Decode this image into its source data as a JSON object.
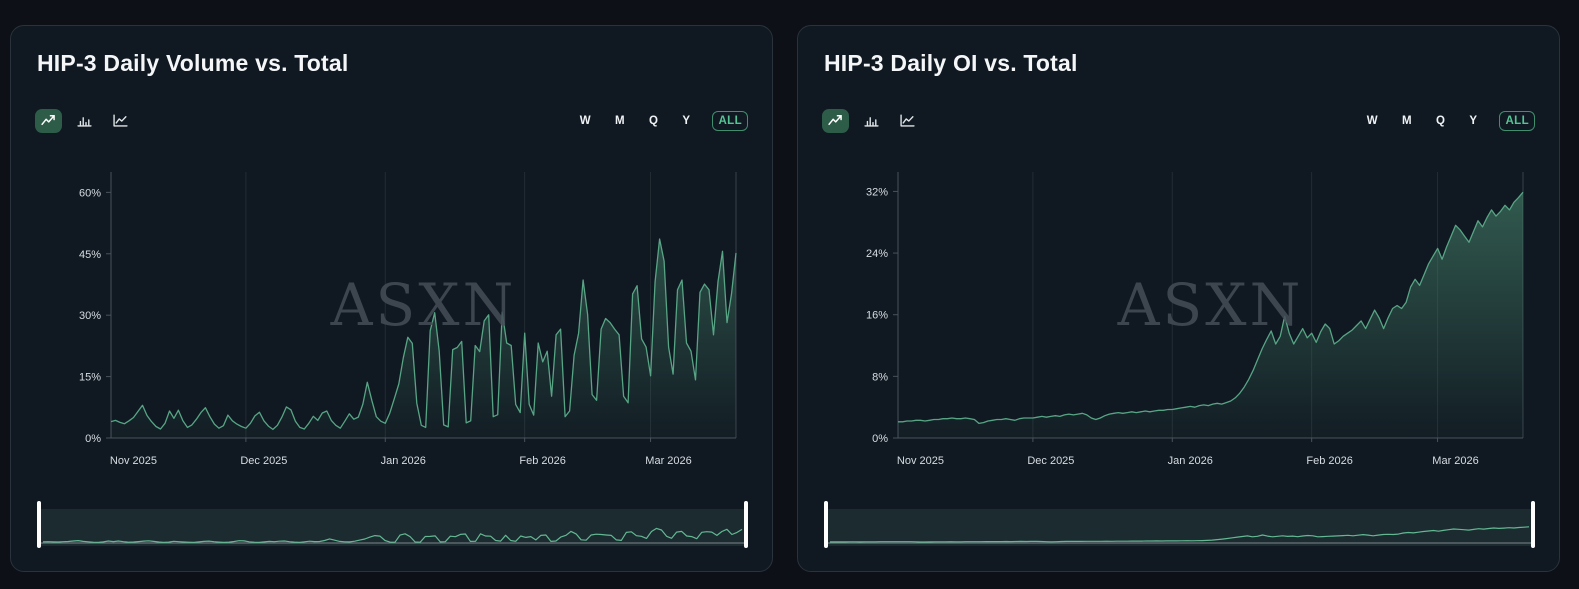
{
  "watermark": "ASXN",
  "toolbar": {
    "chart_types": [
      "trend-line",
      "bar-chart",
      "area-line"
    ],
    "active_chart_type": "trend-line",
    "ranges": [
      "W",
      "M",
      "Q",
      "Y",
      "ALL"
    ],
    "active_range": "ALL"
  },
  "colors": {
    "page_bg": "#0d1117",
    "panel_bg": "#101821",
    "accent_green": "#56c495",
    "series_line": "#57a585",
    "nav_line": "#63b893",
    "selected_icon_bg": "#2d5c49",
    "watermark": "#454d57"
  },
  "chart_data": [
    {
      "type": "area",
      "title": "HIP-3 Daily Volume vs. Total",
      "xlabel": "",
      "ylabel": "",
      "grid": "vertical-month-lines",
      "legend": "none",
      "ylim": [
        0,
        64
      ],
      "y_tick_values": [
        0,
        15,
        30,
        45,
        60
      ],
      "y_tick_labels": [
        "0%",
        "15%",
        "30%",
        "45%",
        "60%"
      ],
      "x_tick_labels": [
        "Nov 2025",
        "Dec 2025",
        "Jan 2026",
        "Feb 2026",
        "Mar 2026"
      ],
      "month_start_indices": [
        30,
        61,
        92,
        120
      ],
      "x_label_day_centers": [
        5,
        34,
        65,
        96,
        124
      ],
      "nav_scale_max": 110,
      "values": [
        4.0,
        4.3,
        3.8,
        3.5,
        4.2,
        5.0,
        6.5,
        8.0,
        5.5,
        4.0,
        2.8,
        2.2,
        3.6,
        6.6,
        4.8,
        6.8,
        4.2,
        2.6,
        3.2,
        4.6,
        6.2,
        7.4,
        5.2,
        3.4,
        2.4,
        3.0,
        5.6,
        4.2,
        3.4,
        2.8,
        2.4,
        3.6,
        5.4,
        6.3,
        4.2,
        2.9,
        2.1,
        3.1,
        5.1,
        7.6,
        6.9,
        4.1,
        2.6,
        2.2,
        3.6,
        5.3,
        4.3,
        6.1,
        6.6,
        4.3,
        3.1,
        2.4,
        4.1,
        5.9,
        4.6,
        5.1,
        8.2,
        13.6,
        9.2,
        5.2,
        4.1,
        3.6,
        6.1,
        9.6,
        13.2,
        19.6,
        24.6,
        23.1,
        8.5,
        3.1,
        2.6,
        26.2,
        30.6,
        21.2,
        3.2,
        2.7,
        21.6,
        22.1,
        23.6,
        3.7,
        4.2,
        22.6,
        21.1,
        28.6,
        30.1,
        5.2,
        5.7,
        30.7,
        23.2,
        22.6,
        8.2,
        6.2,
        25.6,
        8.2,
        5.6,
        23.2,
        18.6,
        21.2,
        10.2,
        25.2,
        26.6,
        5.2,
        6.6,
        20.2,
        25.6,
        38.6,
        30.2,
        10.6,
        9.2,
        26.6,
        29.2,
        28.2,
        26.6,
        25.2,
        10.2,
        8.6,
        35.2,
        37.2,
        24.2,
        22.2,
        15.2,
        38.2,
        48.6,
        43.2,
        22.2,
        15.6,
        36.2,
        38.6,
        23.2,
        21.2,
        14.2,
        35.6,
        37.6,
        36.2,
        25.2,
        38.2,
        45.6,
        28.2,
        35.2,
        45.2
      ]
    },
    {
      "type": "area",
      "title": "HIP-3 Daily OI vs. Total",
      "xlabel": "",
      "ylabel": "",
      "grid": "vertical-month-lines",
      "legend": "none",
      "ylim": [
        0,
        34
      ],
      "y_tick_values": [
        0,
        8,
        16,
        24,
        32
      ],
      "y_tick_labels": [
        "0%",
        "8%",
        "16%",
        "24%",
        "32%"
      ],
      "x_tick_labels": [
        "Nov 2025",
        "Dec 2025",
        "Jan 2026",
        "Feb 2026",
        "Mar 2026"
      ],
      "month_start_indices": [
        30,
        61,
        92,
        120
      ],
      "x_label_day_centers": [
        5,
        34,
        65,
        96,
        124
      ],
      "nav_scale_max": 65,
      "values": [
        2.1,
        2.1,
        2.2,
        2.2,
        2.3,
        2.3,
        2.2,
        2.3,
        2.4,
        2.4,
        2.5,
        2.5,
        2.6,
        2.5,
        2.5,
        2.6,
        2.5,
        2.4,
        1.9,
        2.0,
        2.2,
        2.3,
        2.4,
        2.4,
        2.5,
        2.4,
        2.3,
        2.5,
        2.6,
        2.6,
        2.6,
        2.7,
        2.8,
        2.7,
        2.8,
        2.9,
        2.8,
        3.0,
        3.1,
        3.0,
        3.1,
        3.2,
        3.0,
        2.6,
        2.4,
        2.6,
        2.9,
        3.1,
        3.2,
        3.3,
        3.2,
        3.3,
        3.4,
        3.3,
        3.4,
        3.5,
        3.4,
        3.5,
        3.6,
        3.6,
        3.7,
        3.7,
        3.8,
        3.9,
        4.0,
        4.1,
        4.0,
        4.2,
        4.3,
        4.2,
        4.4,
        4.5,
        4.4,
        4.6,
        4.8,
        5.2,
        5.8,
        6.6,
        7.6,
        8.8,
        10.2,
        11.6,
        12.8,
        13.9,
        12.2,
        13.2,
        15.8,
        13.6,
        12.2,
        13.2,
        14.2,
        13.0,
        13.6,
        12.4,
        13.8,
        14.8,
        14.2,
        12.2,
        12.6,
        13.2,
        13.6,
        14.0,
        14.6,
        15.2,
        14.2,
        15.4,
        16.6,
        15.6,
        14.2,
        15.6,
        16.8,
        17.2,
        16.8,
        17.6,
        19.6,
        20.6,
        19.8,
        21.2,
        22.6,
        23.6,
        24.6,
        23.2,
        24.8,
        26.2,
        27.6,
        27.0,
        26.2,
        25.4,
        26.8,
        28.2,
        27.4,
        28.6,
        29.6,
        28.8,
        29.4,
        30.2,
        29.6,
        30.6,
        31.2,
        31.9
      ]
    }
  ]
}
